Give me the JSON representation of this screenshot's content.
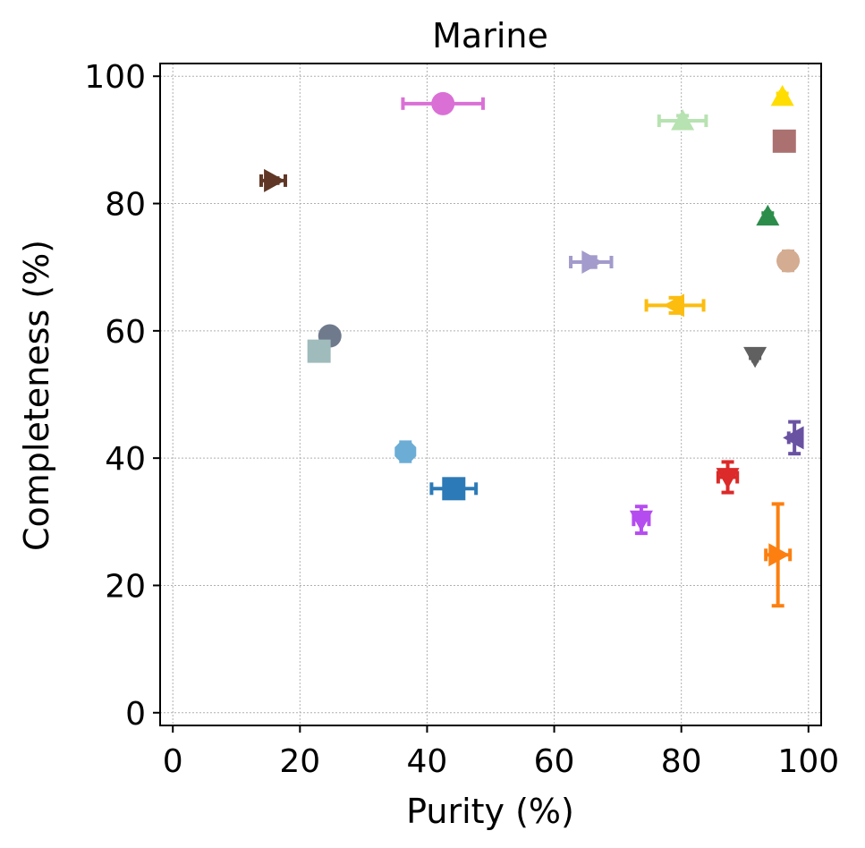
{
  "chart_data": {
    "type": "scatter",
    "title": "Marine",
    "xlabel": "Purity (%)",
    "ylabel": "Completeness (%)",
    "xlim": [
      -2,
      102
    ],
    "ylim": [
      -2,
      102
    ],
    "xticks": [
      0,
      20,
      40,
      60,
      80,
      100
    ],
    "yticks": [
      0,
      20,
      40,
      60,
      80,
      100
    ],
    "grid": true,
    "series": [
      {
        "marker": "circle",
        "color": "#da70d6",
        "x": 42.5,
        "y": 95.7,
        "xerr": 6.3,
        "yerr": 0.3
      },
      {
        "marker": "triangle-up",
        "color": "#b7e2b1",
        "x": 80.2,
        "y": 93.0,
        "xerr": 3.7,
        "yerr": 0.8
      },
      {
        "marker": "triangle-up",
        "color": "#ffdd00",
        "x": 95.9,
        "y": 96.8,
        "xerr": 0.3,
        "yerr": 0.5
      },
      {
        "marker": "square",
        "color": "#ab7170",
        "x": 96.2,
        "y": 89.8,
        "xerr": 0.3,
        "yerr": 0.3
      },
      {
        "marker": "triangle-right",
        "color": "#603726",
        "x": 15.8,
        "y": 83.6,
        "xerr": 1.9,
        "yerr": 0.4
      },
      {
        "marker": "triangle-up",
        "color": "#2c8d4b",
        "x": 93.6,
        "y": 78.0,
        "xerr": 0.3,
        "yerr": 0.5
      },
      {
        "marker": "triangle-right",
        "color": "#a29bcb",
        "x": 65.8,
        "y": 70.8,
        "xerr": 3.2,
        "yerr": 0.8
      },
      {
        "marker": "circle",
        "color": "#d3ac91",
        "x": 96.8,
        "y": 71.0,
        "xerr": 0.3,
        "yerr": 1.5
      },
      {
        "marker": "triangle-left",
        "color": "#fcbd0f",
        "x": 79.0,
        "y": 64.0,
        "xerr": 4.5,
        "yerr": 1.2
      },
      {
        "marker": "circle",
        "color": "#6f7a8d",
        "x": 24.7,
        "y": 59.2,
        "xerr": 1.1,
        "yerr": 0.6
      },
      {
        "marker": "square",
        "color": "#9fbbbb",
        "x": 23.0,
        "y": 56.8,
        "xerr": 0.3,
        "yerr": 0.3
      },
      {
        "marker": "triangle-down",
        "color": "#606060",
        "x": 91.6,
        "y": 56.0,
        "xerr": 0.3,
        "yerr": 0.3
      },
      {
        "marker": "triangle-left",
        "color": "#6a52a3",
        "x": 97.8,
        "y": 43.2,
        "xerr": 0.9,
        "yerr": 2.5
      },
      {
        "marker": "octagon",
        "color": "#6badd5",
        "x": 36.6,
        "y": 41.0,
        "xerr": 1.0,
        "yerr": 1.5
      },
      {
        "marker": "triangle-down",
        "color": "#dc2929",
        "x": 87.3,
        "y": 37.0,
        "xerr": 1.5,
        "yerr": 2.4
      },
      {
        "marker": "square",
        "color": "#2c7ab7",
        "x": 44.2,
        "y": 35.2,
        "xerr": 3.5,
        "yerr": 1.0
      },
      {
        "marker": "triangle-down",
        "color": "#b54cf0",
        "x": 73.7,
        "y": 30.3,
        "xerr": 1.2,
        "yerr": 2.1
      },
      {
        "marker": "triangle-right",
        "color": "#fd7f0f",
        "x": 95.2,
        "y": 24.8,
        "xerr": 1.9,
        "yerr": 8.0
      }
    ]
  }
}
